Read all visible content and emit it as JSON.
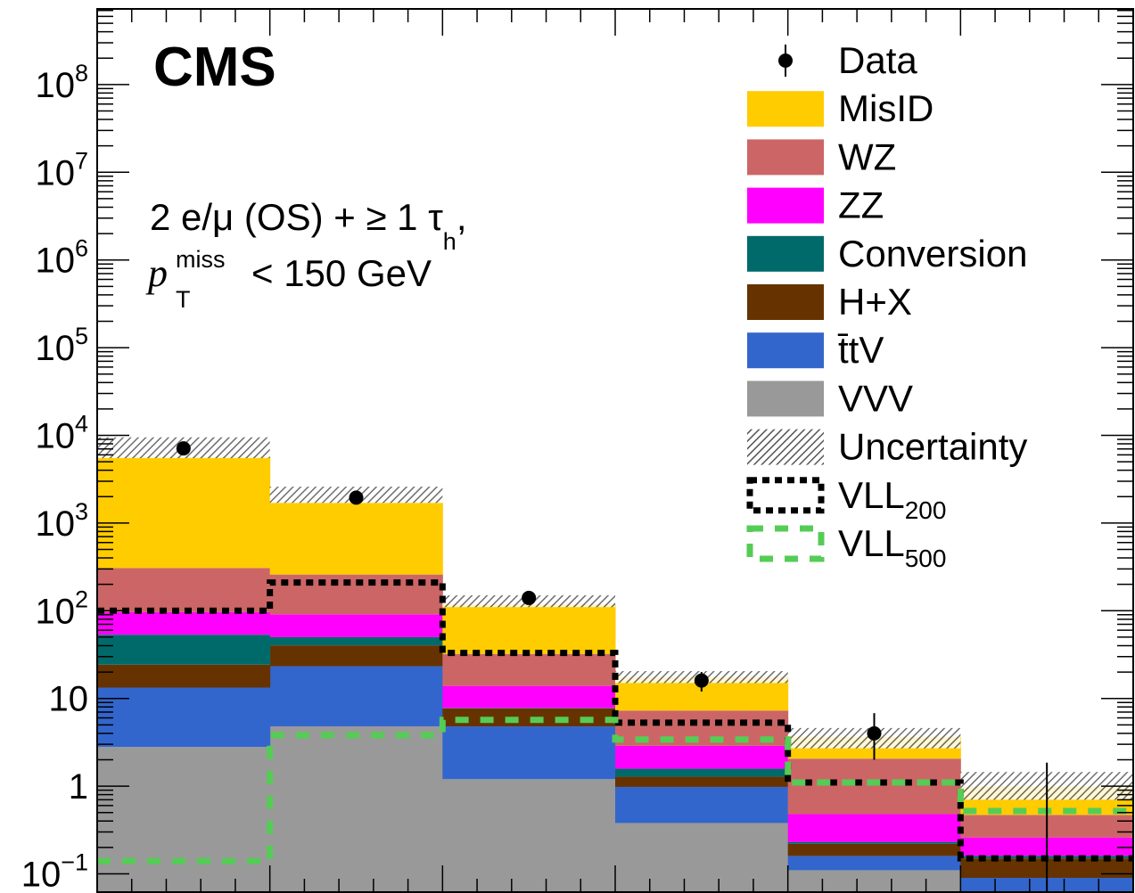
{
  "chart_data": {
    "type": "bar",
    "stacked": true,
    "y_scale": "log",
    "ylim": [
      0.1,
      1000000000
    ],
    "n_bins": 6,
    "experiment_label": "CMS",
    "region_label": {
      "line1": "2 e/μ (OS) + ≥ 1 τ",
      "line1_sub": "h",
      "line1_end": ",",
      "line2_var": "p",
      "line2_sup": "miss",
      "line2_sub": "T",
      "line2_rest": " < 150 GeV"
    },
    "ytick_labels": [
      {
        "value": 0.1,
        "base": "10",
        "exp": "−1"
      },
      {
        "value": 1,
        "text": "1"
      },
      {
        "value": 10,
        "text": "10"
      },
      {
        "value": 100,
        "base": "10",
        "exp": "2"
      },
      {
        "value": 1000,
        "base": "10",
        "exp": "3"
      },
      {
        "value": 10000,
        "base": "10",
        "exp": "4"
      },
      {
        "value": 100000,
        "base": "10",
        "exp": "5"
      },
      {
        "value": 1000000,
        "base": "10",
        "exp": "6"
      },
      {
        "value": 10000000,
        "base": "10",
        "exp": "7"
      },
      {
        "value": 100000000,
        "base": "10",
        "exp": "8"
      }
    ],
    "stack_series": [
      {
        "name": "VVV",
        "color": "#999999",
        "values": [
          2.8,
          4.8,
          1.2,
          0.38,
          0.11,
          0.06
        ]
      },
      {
        "name": "t̄tV",
        "color": "#3366cc",
        "values": [
          10.5,
          18.5,
          3.6,
          0.6,
          0.05,
          0.03
        ]
      },
      {
        "name": "H+X",
        "color": "#663300",
        "values": [
          11,
          17,
          2.9,
          0.3,
          0.06,
          0.06
        ]
      },
      {
        "name": "Conversion",
        "color": "#006a6a",
        "values": [
          29,
          9.7,
          0.1,
          0.3,
          0.01,
          0.01
        ]
      },
      {
        "name": "ZZ",
        "color": "#ff00ff",
        "values": [
          43,
          41,
          6.1,
          1.3,
          0.25,
          0.1
        ]
      },
      {
        "name": "WZ",
        "color": "#cc6666",
        "values": [
          211,
          168,
          18.3,
          4.4,
          1.58,
          0.21
        ]
      },
      {
        "name": "MisID",
        "color": "#ffcc00",
        "values": [
          5400,
          1440,
          87,
          10.3,
          1.6,
          0.52
        ]
      }
    ],
    "uncertainty": {
      "name": "Uncertainty",
      "low": [
        5500,
        1700,
        110,
        15,
        2.7,
        0.7
      ],
      "high": [
        9500,
        2600,
        150,
        20.5,
        4.6,
        1.45
      ]
    },
    "data": {
      "name": "Data",
      "values": [
        7100,
        1950,
        140,
        16,
        4,
        null
      ],
      "err_low": [
        85,
        44,
        12,
        4,
        2,
        null
      ],
      "err_high": [
        85,
        44,
        12,
        4,
        2.8,
        null
      ],
      "upper_limit_bins": [
        {
          "bin": 5,
          "high": 1.85
        }
      ]
    },
    "signals": [
      {
        "name": "VLL",
        "sub": "200",
        "color": "#000000",
        "style": "dotted",
        "values": [
          100,
          210,
          33,
          5.3,
          1.1,
          0.15
        ]
      },
      {
        "name": "VLL",
        "sub": "500",
        "color": "#55cc55",
        "style": "dashed",
        "values": [
          0.14,
          3.8,
          5.7,
          3.4,
          1.1,
          0.52
        ]
      }
    ],
    "legend": {
      "placement": "top-right",
      "entries": [
        {
          "label": "Data",
          "kind": "marker",
          "color": "#000000"
        },
        {
          "label": "MisID",
          "kind": "fill",
          "color": "#ffcc00"
        },
        {
          "label": "WZ",
          "kind": "fill",
          "color": "#cc6666"
        },
        {
          "label": "ZZ",
          "kind": "fill",
          "color": "#ff00ff"
        },
        {
          "label": "Conversion",
          "kind": "fill",
          "color": "#006a6a"
        },
        {
          "label": "H+X",
          "kind": "fill",
          "color": "#663300"
        },
        {
          "label": "t̄tV",
          "kind": "fill",
          "color": "#3366cc"
        },
        {
          "label": "VVV",
          "kind": "fill",
          "color": "#999999"
        },
        {
          "label": "Uncertainty",
          "kind": "hatch",
          "color": "#555555"
        },
        {
          "label": "VLL",
          "sub": "200",
          "kind": "dotted",
          "color": "#000000"
        },
        {
          "label": "VLL",
          "sub": "500",
          "kind": "dashed",
          "color": "#55cc55"
        }
      ]
    }
  }
}
